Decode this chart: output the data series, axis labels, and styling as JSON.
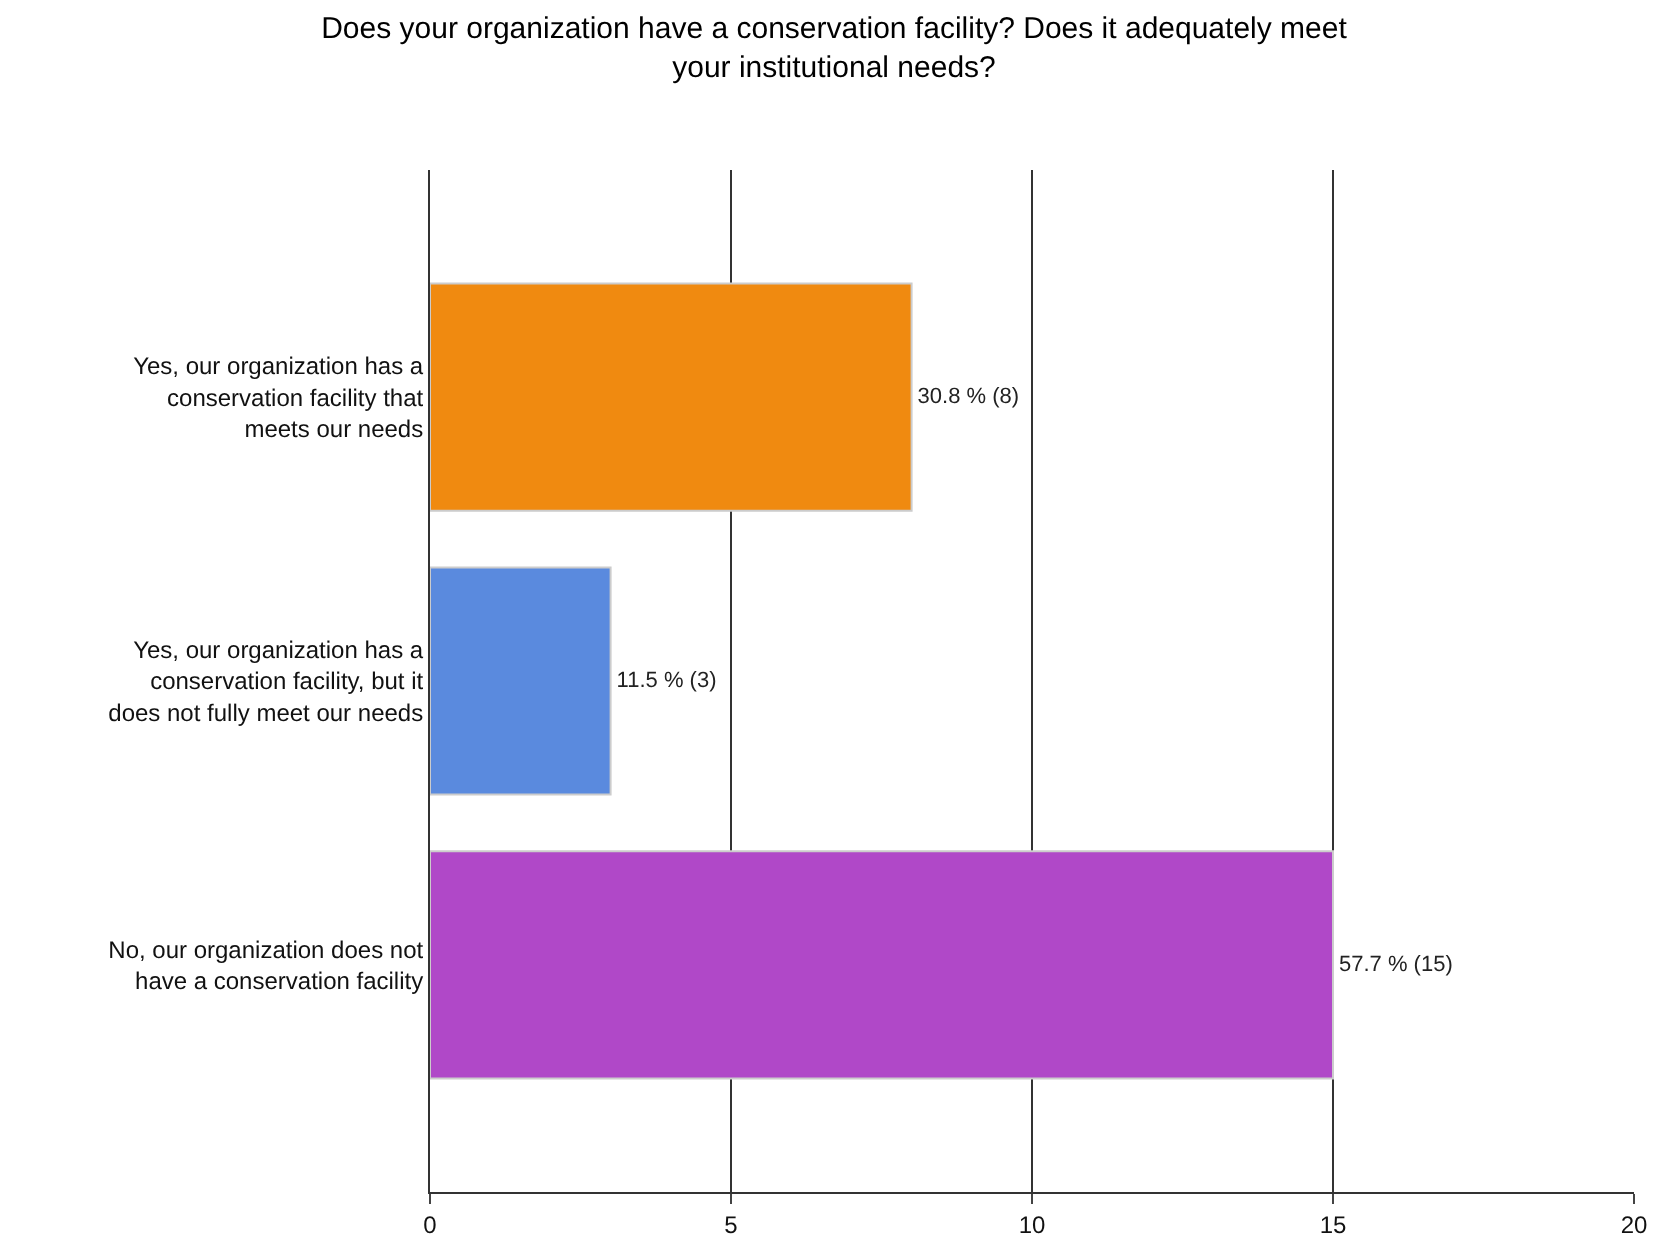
{
  "chart_data": {
    "type": "bar",
    "orientation": "horizontal",
    "title": "Does your organization have a conservation facility? Does it adequately meet your institutional needs?",
    "categories": [
      "Yes, our organization has a conservation facility that meets our needs",
      "Yes, our organization has a conservation facility, but it does not fully meet our needs",
      "No, our organization does not have a conservation facility"
    ],
    "values": [
      8,
      3,
      15
    ],
    "colors": [
      "#f08a10",
      "#5a8ade",
      "#b048c8"
    ],
    "value_labels": [
      "30.8 % (8)",
      "11.5 % (3)",
      "57.7 % (15)"
    ],
    "xlim": [
      0,
      20
    ],
    "xticks": [
      0,
      5,
      10,
      15,
      20
    ],
    "grid": "x"
  }
}
